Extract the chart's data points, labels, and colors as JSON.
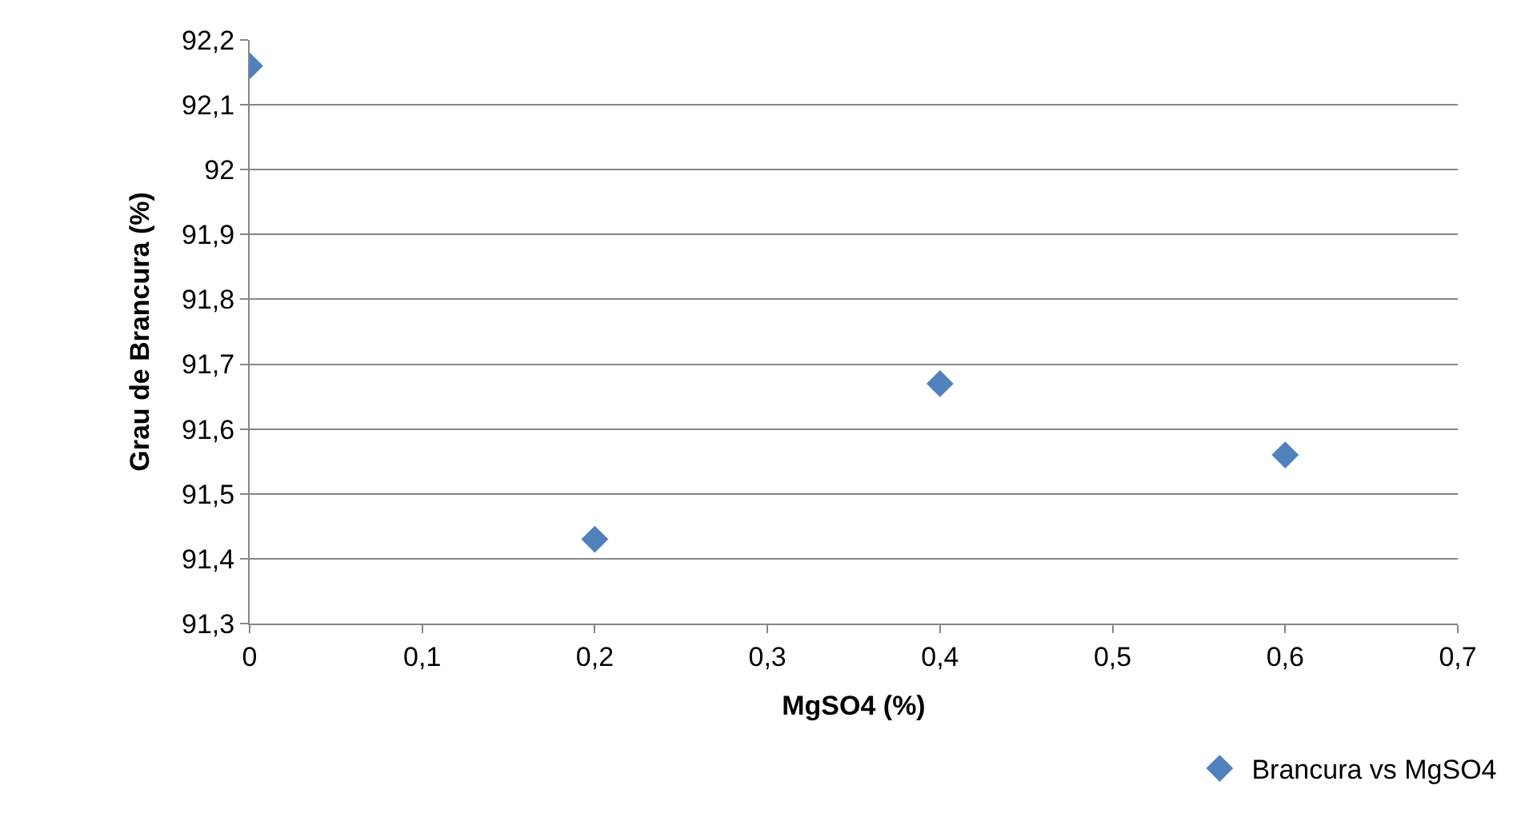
{
  "chart_data": {
    "type": "scatter",
    "xlabel": "MgSO4 (%)",
    "ylabel": "Grau de Brancura (%)",
    "series": [
      {
        "name": "Brancura vs MgSO4",
        "color": "#4f81bd",
        "x": [
          0,
          0.2,
          0.4,
          0.6
        ],
        "values": [
          92.16,
          91.43,
          91.67,
          91.56
        ]
      }
    ],
    "xlim": [
      0,
      0.7
    ],
    "ylim": [
      91.3,
      92.2
    ],
    "xticks": [
      0,
      {
        "value": 0.1,
        "label": "0,1"
      },
      {
        "value": 0.2,
        "label": "0,2"
      },
      {
        "value": 0.3,
        "label": "0,3"
      },
      {
        "value": 0.4,
        "label": "0,4"
      },
      {
        "value": 0.5,
        "label": "0,5"
      },
      {
        "value": 0.6,
        "label": "0,6"
      },
      {
        "value": 0.7,
        "label": "0,7"
      }
    ],
    "yticks": [
      {
        "value": 91.3,
        "label": "91,3"
      },
      {
        "value": 91.4,
        "label": "91,4"
      },
      {
        "value": 91.5,
        "label": "91,5"
      },
      {
        "value": 91.6,
        "label": "91,6"
      },
      {
        "value": 91.7,
        "label": "91,7"
      },
      {
        "value": 91.8,
        "label": "91,8"
      },
      {
        "value": 91.9,
        "label": "91,9"
      },
      92,
      {
        "value": 92.1,
        "label": "92,1"
      },
      {
        "value": 92.2,
        "label": "92,2"
      }
    ],
    "grid": "y",
    "legend": "bottom right",
    "marker": "diamond"
  }
}
